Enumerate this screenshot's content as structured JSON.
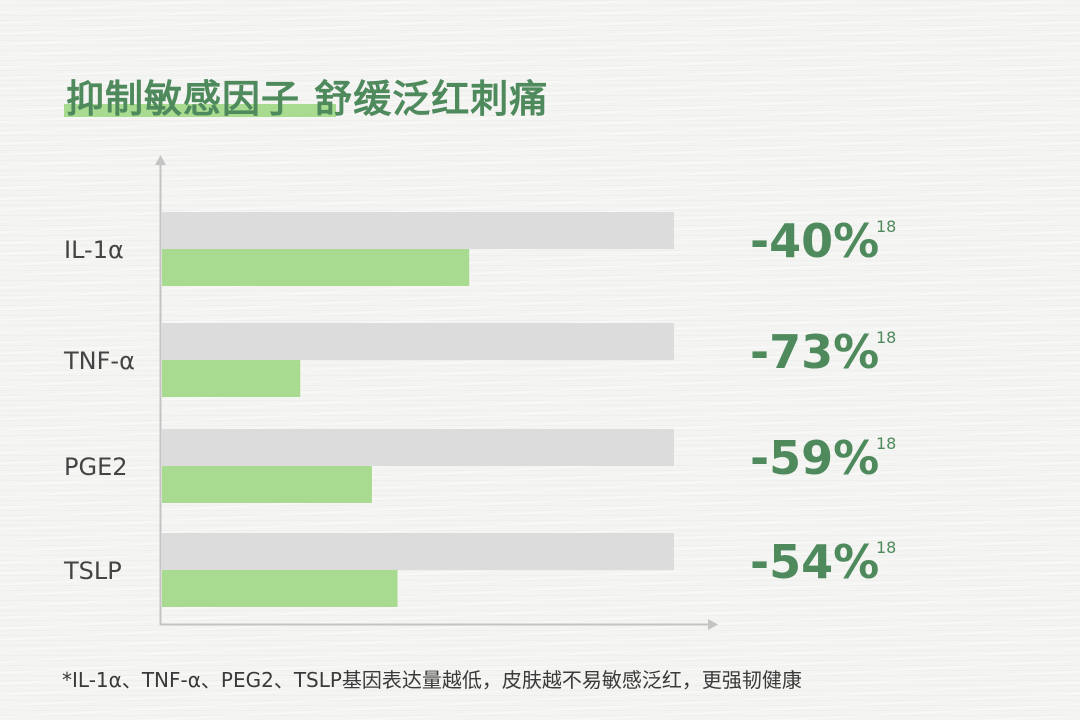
{
  "title": "抑制敏感因子 舒缓泛红刺痛",
  "chart_data": {
    "type": "bar",
    "orientation": "horizontal",
    "categories": [
      "IL-1α",
      "TNF-α",
      "PGE2",
      "TSLP"
    ],
    "series": [
      {
        "values": [
          100,
          100,
          100,
          100
        ]
      },
      {
        "values": [
          60,
          27,
          41,
          46
        ]
      }
    ],
    "data_labels": [
      "-40%",
      "-73%",
      "-59%",
      "-54%"
    ],
    "label_superscript": "18",
    "xlim": [
      0,
      100
    ],
    "grid": false,
    "colors": {
      "baseline": "#dcdcdc",
      "treated": "#a8da90",
      "label": "#4f8a5d",
      "axis": "#c4c4c4",
      "category_text": "#444444"
    }
  },
  "footnote": "*IL-1α、TNF-α、PEG2、TSLP基因表达量越低，皮肤越不易敏感泛红，更强韧健康"
}
